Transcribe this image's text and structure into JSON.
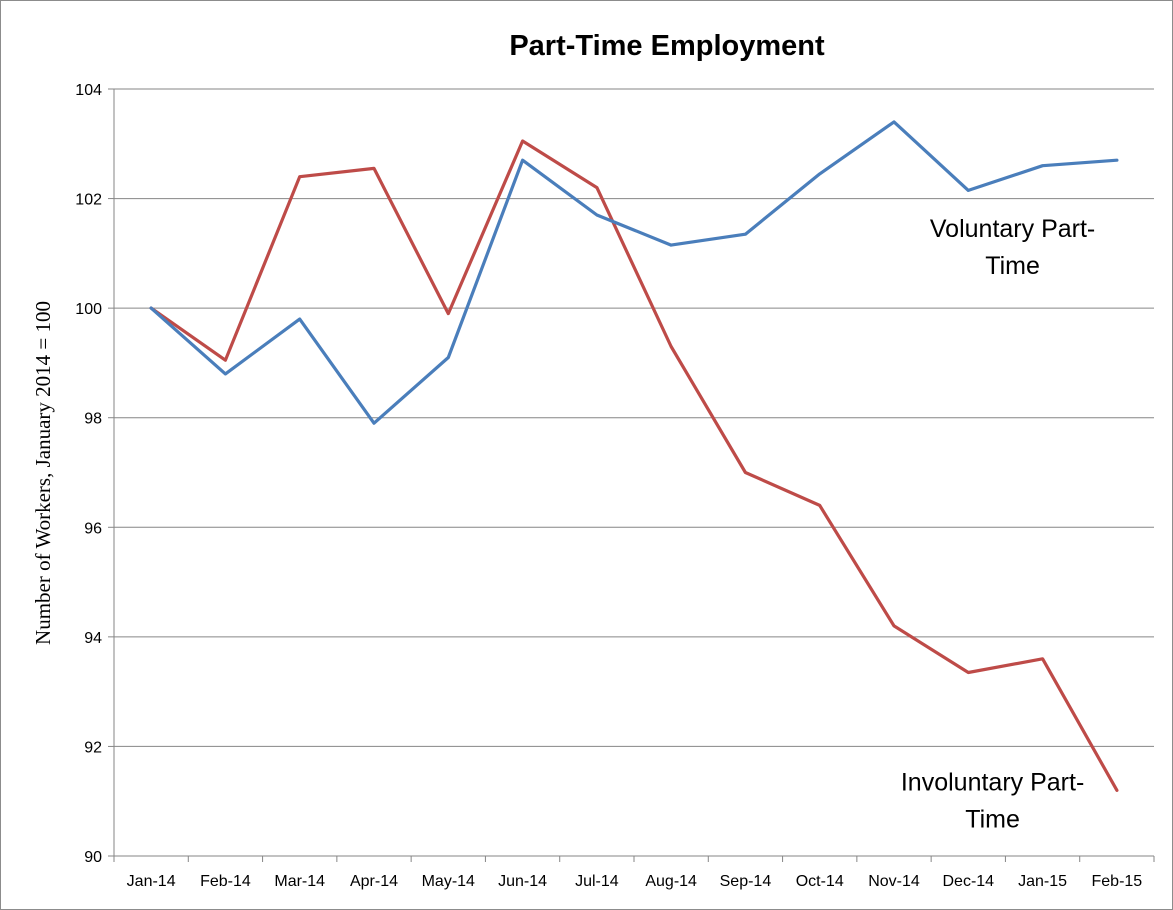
{
  "chart_data": {
    "type": "line",
    "title": "Part-Time Employment",
    "xlabel": "",
    "ylabel": "Number of Workers, January 2014 = 100",
    "ylim": [
      90,
      104
    ],
    "yticks": [
      90,
      92,
      94,
      96,
      98,
      100,
      102,
      104
    ],
    "ytick_labels": [
      "90",
      "92",
      "94",
      "96",
      "98",
      "100",
      "102",
      "104"
    ],
    "grid": true,
    "legend": "none",
    "categories": [
      "Jan-14",
      "Feb-14",
      "Mar-14",
      "Apr-14",
      "May-14",
      "Jun-14",
      "Jul-14",
      "Aug-14",
      "Sep-14",
      "Oct-14",
      "Nov-14",
      "Dec-14",
      "Jan-15",
      "Feb-15"
    ],
    "series": [
      {
        "name": "Voluntary Part-Time",
        "color": "#4a7ebb",
        "values": [
          100.0,
          98.8,
          99.8,
          97.9,
          99.1,
          102.7,
          101.7,
          101.15,
          101.35,
          102.45,
          103.4,
          102.15,
          102.6,
          102.7
        ]
      },
      {
        "name": "Involuntary Part-Time",
        "color": "#be4b48",
        "values": [
          100.0,
          99.05,
          102.4,
          102.55,
          99.9,
          103.05,
          102.2,
          99.3,
          97.0,
          96.4,
          94.2,
          93.35,
          93.6,
          91.2
        ]
      }
    ],
    "annotations": [
      {
        "series": "Voluntary Part-Time",
        "lines": [
          "Voluntary Part-",
          "Time"
        ]
      },
      {
        "series": "Involuntary Part-Time",
        "lines": [
          "Involuntary Part-",
          "Time"
        ]
      }
    ]
  }
}
